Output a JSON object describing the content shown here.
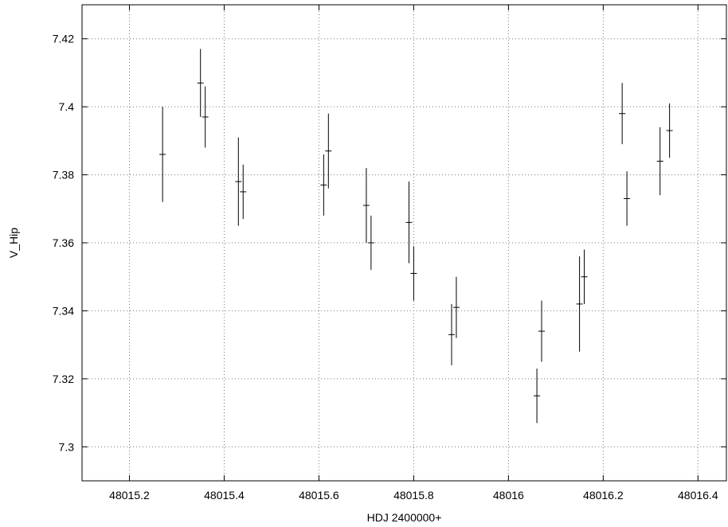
{
  "chart_data": {
    "type": "scatter",
    "title": "",
    "xlabel": "HDJ 2400000+",
    "ylabel": "V_Hip",
    "xlim": [
      48015.1,
      48016.46
    ],
    "ylim": [
      7.43,
      7.29
    ],
    "y_inverted": true,
    "grid": true,
    "grid_style": "dotted",
    "error_bars": "vertical",
    "x_ticks": [
      48015.2,
      48015.4,
      48015.6,
      48015.8,
      48016,
      48016.2,
      48016.4
    ],
    "x_tick_labels": [
      "48015.2",
      "48015.4",
      "48015.6",
      "48015.8",
      "48016",
      "48016.2",
      "48016.4"
    ],
    "y_ticks": [
      7.3,
      7.32,
      7.34,
      7.36,
      7.38,
      7.4,
      7.42
    ],
    "y_tick_labels": [
      "7.3",
      "7.32",
      "7.34",
      "7.36",
      "7.38",
      "7.4",
      "7.42"
    ],
    "color": "#000000",
    "points": [
      {
        "x": 48015.27,
        "y": 7.386,
        "err": 0.014
      },
      {
        "x": 48015.35,
        "y": 7.407,
        "err": 0.01
      },
      {
        "x": 48015.36,
        "y": 7.397,
        "err": 0.009
      },
      {
        "x": 48015.43,
        "y": 7.378,
        "err": 0.013
      },
      {
        "x": 48015.44,
        "y": 7.375,
        "err": 0.008
      },
      {
        "x": 48015.61,
        "y": 7.377,
        "err": 0.009
      },
      {
        "x": 48015.62,
        "y": 7.387,
        "err": 0.011
      },
      {
        "x": 48015.7,
        "y": 7.371,
        "err": 0.011
      },
      {
        "x": 48015.71,
        "y": 7.36,
        "err": 0.008
      },
      {
        "x": 48015.79,
        "y": 7.366,
        "err": 0.012
      },
      {
        "x": 48015.8,
        "y": 7.351,
        "err": 0.008
      },
      {
        "x": 48015.88,
        "y": 7.333,
        "err": 0.009
      },
      {
        "x": 48015.89,
        "y": 7.341,
        "err": 0.009
      },
      {
        "x": 48016.06,
        "y": 7.315,
        "err": 0.008
      },
      {
        "x": 48016.07,
        "y": 7.334,
        "err": 0.009
      },
      {
        "x": 48016.15,
        "y": 7.342,
        "err": 0.014
      },
      {
        "x": 48016.16,
        "y": 7.35,
        "err": 0.008
      },
      {
        "x": 48016.24,
        "y": 7.398,
        "err": 0.009
      },
      {
        "x": 48016.25,
        "y": 7.373,
        "err": 0.008
      },
      {
        "x": 48016.32,
        "y": 7.384,
        "err": 0.01
      },
      {
        "x": 48016.34,
        "y": 7.393,
        "err": 0.008
      }
    ]
  }
}
